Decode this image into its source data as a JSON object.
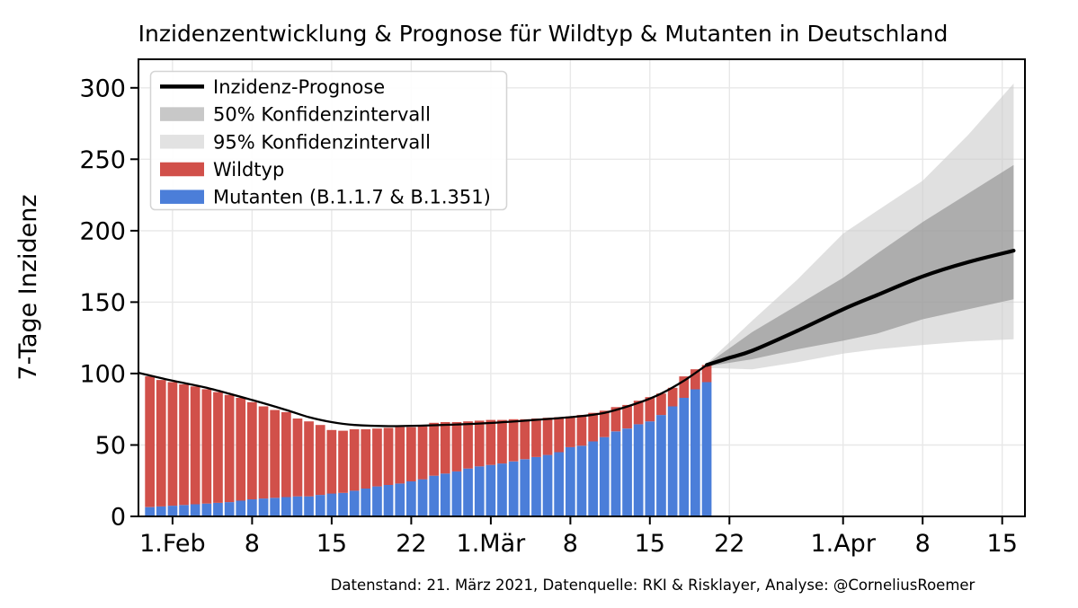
{
  "figure": {
    "title": "Inzidenzentwicklung & Prognose für Wildtyp & Mutanten in Deutschland",
    "caption": "Datenstand: 21. März 2021, Datenquelle: RKI & Risklayer, Analyse: @CorneliusRoemer",
    "background": "#ffffff"
  },
  "colors": {
    "wildtyp": "#d1504a",
    "mutanten": "#4b7ed9",
    "prognose_line": "#000000",
    "ci50_band": "#888888",
    "ci50_band_opacity": 0.58,
    "ci95_band": "#cccccc",
    "ci95_band_opacity": 0.6,
    "ci50_legend": "#c8c8c8",
    "ci95_legend": "#e2e2e2",
    "grid": "#e8e8e8",
    "frame": "#000000",
    "legend_border": "#d4d4d4"
  },
  "legend": {
    "items": [
      {
        "label": "Inzidenz-Prognose",
        "type": "line",
        "color": "#000000"
      },
      {
        "label": "50% Konfidenzintervall",
        "type": "patch",
        "color": "#c8c8c8"
      },
      {
        "label": "95% Konfidenzintervall",
        "type": "patch",
        "color": "#e2e2e2"
      },
      {
        "label": "Wildtyp",
        "type": "patch",
        "color": "#d1504a"
      },
      {
        "label": "Mutanten (B.1.1.7 & B.1.351)",
        "type": "patch",
        "color": "#4b7ed9"
      }
    ]
  },
  "axes": {
    "ylabel": "7-Tage Inzidenz",
    "y_ticks": [
      0,
      50,
      100,
      150,
      200,
      250,
      300
    ],
    "x_ticks": [
      {
        "date": "2021-02-01",
        "label": "1.Feb"
      },
      {
        "date": "2021-02-08",
        "label": "8"
      },
      {
        "date": "2021-02-15",
        "label": "15"
      },
      {
        "date": "2021-02-22",
        "label": "22"
      },
      {
        "date": "2021-03-01",
        "label": "1.Mär"
      },
      {
        "date": "2021-03-08",
        "label": "8"
      },
      {
        "date": "2021-03-15",
        "label": "15"
      },
      {
        "date": "2021-03-22",
        "label": "22"
      },
      {
        "date": "2021-04-01",
        "label": "1.Apr"
      },
      {
        "date": "2021-04-08",
        "label": "8"
      },
      {
        "date": "2021-04-15",
        "label": "15"
      }
    ]
  },
  "chart_data": {
    "type": "composite",
    "title": "Inzidenzentwicklung & Prognose für Wildtyp & Mutanten in Deutschland",
    "xlabel": "",
    "ylabel": "7-Tage Inzidenz",
    "ylim": [
      0,
      320
    ],
    "x_range": [
      "2021-01-29",
      "2021-04-17"
    ],
    "grid": true,
    "legend_position": "upper left",
    "bars": {
      "stacked": true,
      "wildtyp_label": "Wildtyp",
      "mutanten_label": "Mutanten (B.1.1.7 & B.1.351)",
      "dates": [
        "2021-01-30",
        "2021-01-31",
        "2021-02-01",
        "2021-02-02",
        "2021-02-03",
        "2021-02-04",
        "2021-02-05",
        "2021-02-06",
        "2021-02-07",
        "2021-02-08",
        "2021-02-09",
        "2021-02-10",
        "2021-02-11",
        "2021-02-12",
        "2021-02-13",
        "2021-02-14",
        "2021-02-15",
        "2021-02-16",
        "2021-02-17",
        "2021-02-18",
        "2021-02-19",
        "2021-02-20",
        "2021-02-21",
        "2021-02-22",
        "2021-02-23",
        "2021-02-24",
        "2021-02-25",
        "2021-02-26",
        "2021-02-27",
        "2021-02-28",
        "2021-03-01",
        "2021-03-02",
        "2021-03-03",
        "2021-03-04",
        "2021-03-05",
        "2021-03-06",
        "2021-03-07",
        "2021-03-08",
        "2021-03-09",
        "2021-03-10",
        "2021-03-11",
        "2021-03-12",
        "2021-03-13",
        "2021-03-14",
        "2021-03-15",
        "2021-03-16",
        "2021-03-17",
        "2021-03-18",
        "2021-03-19",
        "2021-03-20"
      ],
      "mutanten": [
        6.5,
        7,
        7.5,
        8,
        8.5,
        9,
        9.5,
        10,
        11,
        12,
        12.5,
        13,
        13.5,
        14,
        14,
        15,
        16,
        16.5,
        18,
        19.5,
        21,
        22,
        23,
        24.5,
        26,
        28.5,
        30,
        31.5,
        33.5,
        35,
        36,
        37,
        38.5,
        40,
        41.5,
        43,
        45,
        48.5,
        49.5,
        52.5,
        55.5,
        59.5,
        61.5,
        64.5,
        66.5,
        71,
        77,
        83,
        89,
        94
      ],
      "wildtyp": [
        91.5,
        88.5,
        86.5,
        84.5,
        82.5,
        80,
        77.5,
        75,
        72,
        68,
        64.5,
        61.5,
        59.5,
        54.5,
        52.5,
        49,
        44.5,
        43.5,
        43,
        41.5,
        40.5,
        40,
        39.5,
        38,
        37,
        37,
        36,
        34.5,
        33,
        32,
        31.5,
        30.5,
        29.5,
        28,
        27,
        26,
        24.5,
        21.5,
        21.5,
        20,
        18.5,
        17,
        16.5,
        16.5,
        17,
        15,
        13,
        15,
        14,
        12
      ]
    },
    "prognose": {
      "label": "Inzidenz-Prognose",
      "history": [
        [
          "2021-01-29",
          100.5
        ],
        [
          "2021-02-01",
          95
        ],
        [
          "2021-02-04",
          90
        ],
        [
          "2021-02-08",
          81.5
        ],
        [
          "2021-02-11",
          74.5
        ],
        [
          "2021-02-13",
          69.5
        ],
        [
          "2021-02-15",
          66
        ],
        [
          "2021-02-17",
          64
        ],
        [
          "2021-02-20",
          63.2
        ],
        [
          "2021-02-24",
          63.8
        ],
        [
          "2021-02-28",
          65
        ],
        [
          "2021-03-04",
          67
        ],
        [
          "2021-03-08",
          69.5
        ],
        [
          "2021-03-11",
          72.5
        ],
        [
          "2021-03-14",
          79.5
        ],
        [
          "2021-03-16",
          86
        ],
        [
          "2021-03-18",
          95
        ],
        [
          "2021-03-20",
          106
        ]
      ],
      "forecast": [
        [
          "2021-03-20",
          106
        ],
        [
          "2021-03-22",
          111
        ],
        [
          "2021-03-24",
          116
        ],
        [
          "2021-03-28",
          130
        ],
        [
          "2021-04-01",
          145
        ],
        [
          "2021-04-04",
          155
        ],
        [
          "2021-04-08",
          168
        ],
        [
          "2021-04-12",
          178
        ],
        [
          "2021-04-16",
          186
        ]
      ]
    },
    "bands": {
      "ci50_label": "50% Konfidenzintervall",
      "ci95_label": "95% Konfidenzintervall",
      "dates": [
        "2021-03-20",
        "2021-03-24",
        "2021-03-28",
        "2021-04-01",
        "2021-04-04",
        "2021-04-08",
        "2021-04-12",
        "2021-04-16"
      ],
      "ci50_upper": [
        106.5,
        129,
        148,
        167,
        184,
        206,
        226,
        246
      ],
      "ci50_lower": [
        105,
        110,
        117,
        123,
        128,
        138,
        145,
        152
      ],
      "ci95_upper": [
        107,
        137,
        166,
        198,
        214,
        235,
        267,
        303
      ],
      "ci95_lower": [
        104,
        103,
        108,
        114,
        117,
        120,
        122.5,
        124
      ]
    }
  }
}
